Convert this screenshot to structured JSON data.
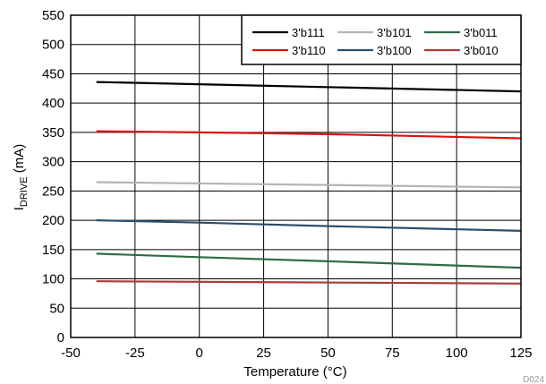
{
  "chart_data": {
    "type": "line",
    "xlabel": "Temperature (°C)",
    "ylabel_main": "I",
    "ylabel_sub": "DRIVE",
    "ylabel_unit": " (mA)",
    "xlim": [
      -50,
      125
    ],
    "ylim": [
      0,
      550
    ],
    "xticks": [
      -50,
      -25,
      0,
      25,
      50,
      75,
      100,
      125
    ],
    "yticks": [
      0,
      50,
      100,
      150,
      200,
      250,
      300,
      350,
      400,
      450,
      500,
      550
    ],
    "grid": true,
    "legend_position": "top-right",
    "figure_id": "D024",
    "series": [
      {
        "name": "3'b111",
        "color": "#000000",
        "x": [
          -40,
          125
        ],
        "y": [
          436,
          420
        ]
      },
      {
        "name": "3'b101",
        "color": "#b4b4b4",
        "x": [
          -40,
          125
        ],
        "y": [
          265,
          256
        ]
      },
      {
        "name": "3'b011",
        "color": "#2e6b45",
        "x": [
          -40,
          0,
          50,
          125
        ],
        "y": [
          143,
          137,
          130,
          119
        ]
      },
      {
        "name": "3'b110",
        "color": "#e01010",
        "x": [
          -40,
          0,
          50,
          125
        ],
        "y": [
          352,
          350,
          347,
          340
        ]
      },
      {
        "name": "3'b100",
        "color": "#2b4e6e",
        "x": [
          -40,
          0,
          50,
          125
        ],
        "y": [
          200,
          196,
          190,
          182
        ]
      },
      {
        "name": "3'b010",
        "color": "#a83c3c",
        "x": [
          -40,
          125
        ],
        "y": [
          96,
          92
        ]
      }
    ]
  }
}
